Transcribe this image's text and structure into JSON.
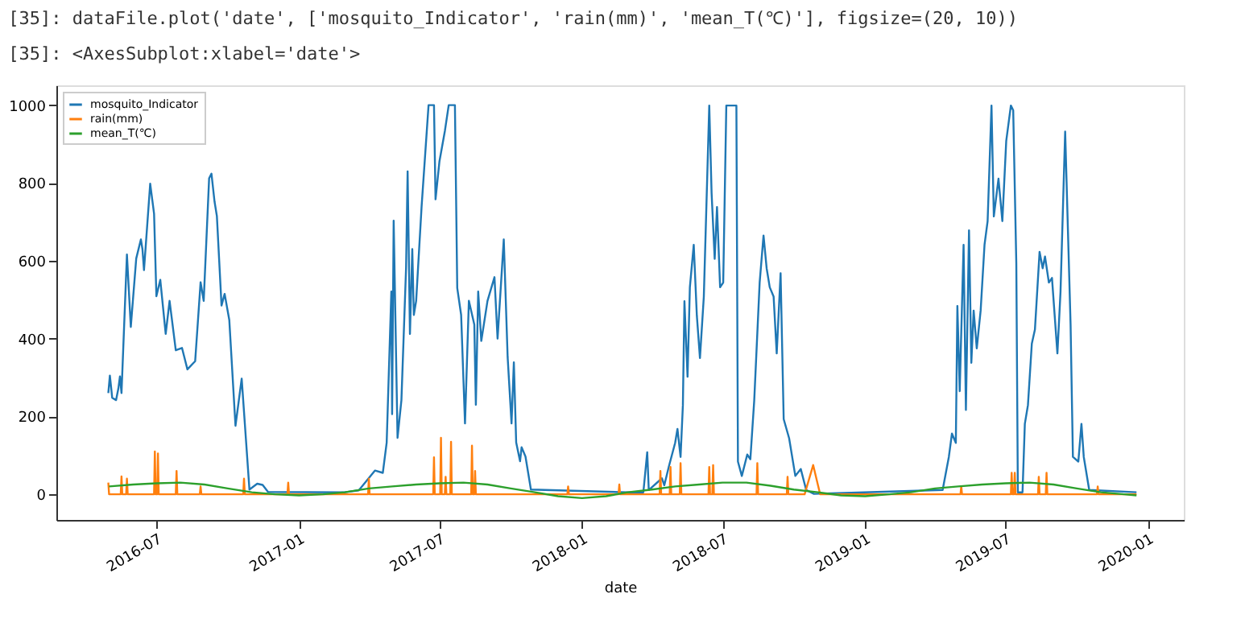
{
  "chart_data": {
    "type": "line",
    "annotations": [
      "[35]: dataFile.plot('date', ['mosquito_Indicator', 'rain(mm)', 'mean_T(℃)'], figsize=(20, 10))",
      "[35]: <AxesSubplot:xlabel='date'>"
    ],
    "xlabel": "date",
    "legend": "top left",
    "grid": false,
    "line_style": "solid",
    "marker": "none",
    "xlim": [
      "2016-02-23",
      "2020-02-16"
    ],
    "xticks": [
      {
        "value": "2016-07-01",
        "label": "2016-07"
      },
      {
        "value": "2017-01-01",
        "label": "2017-01"
      },
      {
        "value": "2017-07-01",
        "label": "2017-07"
      },
      {
        "value": "2018-01-01",
        "label": "2018-01"
      },
      {
        "value": "2018-07-01",
        "label": "2018-07"
      },
      {
        "value": "2019-01-01",
        "label": "2019-01"
      },
      {
        "value": "2019-07-01",
        "label": "2019-07"
      },
      {
        "value": "2020-01-01",
        "label": "2020-01"
      }
    ],
    "ylim": [
      -66,
      1051
    ],
    "yticks": [
      0,
      200,
      400,
      600,
      800,
      1000
    ],
    "series": [
      {
        "name": "mosquito_Indicator",
        "color": "#1f77b4",
        "x": [
          "2016-04-30",
          "2016-05-02",
          "2016-05-05",
          "2016-05-10",
          "2016-05-13",
          "2016-05-15",
          "2016-05-17",
          "2016-05-24",
          "2016-05-29",
          "2016-06-05",
          "2016-06-11",
          "2016-06-13",
          "2016-06-15",
          "2016-06-23",
          "2016-06-28",
          "2016-07-01",
          "2016-07-06",
          "2016-07-13",
          "2016-07-18",
          "2016-07-26",
          "2016-08-03",
          "2016-08-10",
          "2016-08-20",
          "2016-08-27",
          "2016-08-31",
          "2016-09-07",
          "2016-09-10",
          "2016-09-14",
          "2016-09-17",
          "2016-09-23",
          "2016-09-27",
          "2016-10-03",
          "2016-10-11",
          "2016-10-19",
          "2016-10-29",
          "2016-11-08",
          "2016-11-15",
          "2016-11-22",
          "2017-03-01",
          "2017-03-19",
          "2017-04-09",
          "2017-04-19",
          "2017-04-24",
          "2017-04-30",
          "2017-05-01",
          "2017-05-03",
          "2017-05-08",
          "2017-05-13",
          "2017-05-19",
          "2017-05-21",
          "2017-05-24",
          "2017-05-27",
          "2017-05-29",
          "2017-06-01",
          "2017-06-08",
          "2017-06-17",
          "2017-06-24",
          "2017-06-26",
          "2017-07-01",
          "2017-07-08",
          "2017-07-13",
          "2017-07-21",
          "2017-07-24",
          "2017-07-29",
          "2017-08-03",
          "2017-08-08",
          "2017-08-15",
          "2017-08-17",
          "2017-08-20",
          "2017-08-24",
          "2017-09-01",
          "2017-09-10",
          "2017-09-14",
          "2017-09-22",
          "2017-09-27",
          "2017-10-02",
          "2017-10-05",
          "2017-10-08",
          "2017-10-13",
          "2017-10-15",
          "2017-10-20",
          "2017-10-27",
          "2018-03-01",
          "2018-03-21",
          "2018-03-26",
          "2018-03-28",
          "2018-04-14",
          "2018-04-17",
          "2018-04-23",
          "2018-05-01",
          "2018-05-04",
          "2018-05-08",
          "2018-05-11",
          "2018-05-13",
          "2018-05-17",
          "2018-05-20",
          "2018-05-25",
          "2018-05-29",
          "2018-06-02",
          "2018-06-07",
          "2018-06-14",
          "2018-06-17",
          "2018-06-21",
          "2018-06-24",
          "2018-06-28",
          "2018-07-02",
          "2018-07-06",
          "2018-07-19",
          "2018-07-21",
          "2018-07-26",
          "2018-08-02",
          "2018-08-06",
          "2018-08-11",
          "2018-08-18",
          "2018-08-23",
          "2018-08-27",
          "2018-08-31",
          "2018-09-05",
          "2018-09-09",
          "2018-09-14",
          "2018-09-18",
          "2018-09-25",
          "2018-10-03",
          "2018-10-10",
          "2018-10-17",
          "2018-10-27",
          "2019-04-11",
          "2019-04-19",
          "2019-04-23",
          "2019-04-28",
          "2019-04-30",
          "2019-05-03",
          "2019-05-08",
          "2019-05-11",
          "2019-05-15",
          "2019-05-18",
          "2019-05-21",
          "2019-05-25",
          "2019-05-30",
          "2019-06-04",
          "2019-06-08",
          "2019-06-13",
          "2019-06-16",
          "2019-06-22",
          "2019-06-27",
          "2019-07-02",
          "2019-07-08",
          "2019-07-11",
          "2019-07-15",
          "2019-07-17",
          "2019-07-23",
          "2019-07-26",
          "2019-07-30",
          "2019-08-04",
          "2019-08-08",
          "2019-08-14",
          "2019-08-18",
          "2019-08-21",
          "2019-08-26",
          "2019-08-30",
          "2019-09-06",
          "2019-09-10",
          "2019-09-16",
          "2019-09-23",
          "2019-09-26",
          "2019-10-03",
          "2019-10-07",
          "2019-10-10",
          "2019-10-17",
          "2019-12-17"
        ],
        "values": [
          260,
          305,
          248,
          242,
          272,
          303,
          260,
          616,
          430,
          606,
          655,
          630,
          576,
          798,
          721,
          509,
          551,
          412,
          497,
          370,
          376,
          321,
          342,
          545,
          497,
          812,
          824,
          752,
          715,
          485,
          515,
          448,
          176,
          297,
          12,
          27,
          24,
          6,
          5,
          10,
          61,
          55,
          133,
          521,
          206,
          703,
          145,
          242,
          582,
          830,
          412,
          630,
          461,
          497,
          739,
          1000,
          1000,
          758,
          855,
          933,
          1000,
          1000,
          530,
          461,
          182,
          497,
          436,
          230,
          521,
          394,
          497,
          558,
          400,
          655,
          352,
          182,
          339,
          133,
          85,
          121,
          97,
          12,
          5,
          5,
          108,
          11,
          41,
          23,
          72,
          132,
          168,
          96,
          229,
          496,
          302,
          532,
          641,
          459,
          350,
          508,
          999,
          775,
          605,
          738,
          532,
          544,
          999,
          999,
          84,
          47,
          102,
          90,
          241,
          544,
          665,
          581,
          532,
          508,
          362,
          568,
          193,
          144,
          47,
          65,
          11,
          1,
          11,
          96,
          156,
          132,
          484,
          265,
          641,
          217,
          678,
          338,
          472,
          375,
          472,
          641,
          702,
          999,
          714,
          811,
          702,
          908,
          999,
          987,
          593,
          5,
          5,
          181,
          229,
          387,
          423,
          623,
          581,
          611,
          544,
          556,
          362,
          520,
          932,
          435,
          96,
          84,
          181,
          96,
          11,
          5
        ]
      },
      {
        "name": "rain(mm)",
        "color": "#ff7f0e",
        "x": [
          "2016-04-30",
          "2016-05-01",
          "2016-05-16",
          "2016-05-17",
          "2016-05-18",
          "2016-05-23",
          "2016-05-24",
          "2016-05-25",
          "2016-06-28",
          "2016-06-29",
          "2016-06-30",
          "2016-07-02",
          "2016-07-03",
          "2016-07-04",
          "2016-07-26",
          "2016-07-27",
          "2016-07-28",
          "2016-08-26",
          "2016-08-27",
          "2016-08-28",
          "2016-10-21",
          "2016-10-22",
          "2016-10-23",
          "2016-12-17",
          "2016-12-18",
          "2016-12-19",
          "2017-03-31",
          "2017-04-01",
          "2017-04-02",
          "2017-06-23",
          "2017-06-24",
          "2017-06-25",
          "2017-07-02",
          "2017-07-03",
          "2017-07-04",
          "2017-07-08",
          "2017-07-09",
          "2017-07-10",
          "2017-07-15",
          "2017-07-16",
          "2017-07-17",
          "2017-08-11",
          "2017-08-12",
          "2017-08-13",
          "2017-08-15",
          "2017-08-16",
          "2017-08-17",
          "2017-12-13",
          "2017-12-14",
          "2017-12-15",
          "2018-02-17",
          "2018-02-18",
          "2018-02-19",
          "2018-04-11",
          "2018-04-12",
          "2018-04-13",
          "2018-04-24",
          "2018-04-25",
          "2018-04-26",
          "2018-05-07",
          "2018-05-08",
          "2018-05-09",
          "2018-06-13",
          "2018-06-14",
          "2018-06-15",
          "2018-06-18",
          "2018-06-19",
          "2018-06-20",
          "2018-08-14",
          "2018-08-15",
          "2018-08-16",
          "2018-09-22",
          "2018-09-23",
          "2018-09-24",
          "2018-10-15",
          "2018-10-26",
          "2018-11-04",
          "2019-05-04",
          "2019-05-05",
          "2019-05-06",
          "2019-07-08",
          "2019-07-09",
          "2019-07-10",
          "2019-07-12",
          "2019-07-13",
          "2019-07-14",
          "2019-08-12",
          "2019-08-13",
          "2019-08-14",
          "2019-08-22",
          "2019-08-23",
          "2019-08-24",
          "2019-10-27",
          "2019-10-28",
          "2019-10-29",
          "2019-12-17"
        ],
        "values": [
          30,
          0,
          0,
          46,
          0,
          0,
          40,
          0,
          0,
          110,
          0,
          0,
          105,
          0,
          0,
          60,
          0,
          0,
          20,
          0,
          0,
          40,
          0,
          0,
          30,
          0,
          0,
          40,
          0,
          0,
          95,
          0,
          0,
          145,
          0,
          0,
          45,
          0,
          0,
          135,
          0,
          0,
          125,
          0,
          0,
          60,
          0,
          0,
          20,
          0,
          0,
          25,
          0,
          0,
          60,
          0,
          0,
          70,
          0,
          0,
          80,
          0,
          0,
          70,
          0,
          0,
          75,
          0,
          0,
          80,
          0,
          0,
          45,
          0,
          0,
          75,
          0,
          0,
          20,
          0,
          0,
          55,
          0,
          0,
          55,
          0,
          0,
          45,
          0,
          0,
          55,
          0,
          0,
          20,
          0,
          0
        ]
      },
      {
        "name": "mean_T(℃)",
        "color": "#2ca02c",
        "x": [
          "2016-05-01",
          "2016-06-01",
          "2016-07-01",
          "2016-08-01",
          "2016-09-01",
          "2016-10-01",
          "2016-11-01",
          "2016-12-01",
          "2017-01-01",
          "2017-02-01",
          "2017-03-01",
          "2017-04-01",
          "2017-05-01",
          "2017-06-01",
          "2017-07-01",
          "2017-08-01",
          "2017-09-01",
          "2017-10-01",
          "2017-11-01",
          "2017-12-01",
          "2018-01-01",
          "2018-02-01",
          "2018-03-01",
          "2018-04-01",
          "2018-05-01",
          "2018-06-01",
          "2018-07-01",
          "2018-08-01",
          "2018-09-01",
          "2018-10-01",
          "2018-11-01",
          "2018-12-01",
          "2019-01-01",
          "2019-02-01",
          "2019-03-01",
          "2019-04-01",
          "2019-05-01",
          "2019-06-01",
          "2019-07-01",
          "2019-08-01",
          "2019-09-01",
          "2019-10-01",
          "2019-11-01",
          "2019-12-01",
          "2019-12-17"
        ],
        "values": [
          20,
          25,
          28,
          30,
          25,
          15,
          5,
          0,
          -3,
          0,
          5,
          15,
          20,
          25,
          28,
          30,
          25,
          15,
          5,
          -5,
          -10,
          -5,
          5,
          12,
          20,
          25,
          30,
          30,
          22,
          12,
          5,
          -3,
          -5,
          0,
          5,
          15,
          20,
          25,
          28,
          30,
          25,
          15,
          5,
          0,
          -3
        ]
      }
    ]
  }
}
